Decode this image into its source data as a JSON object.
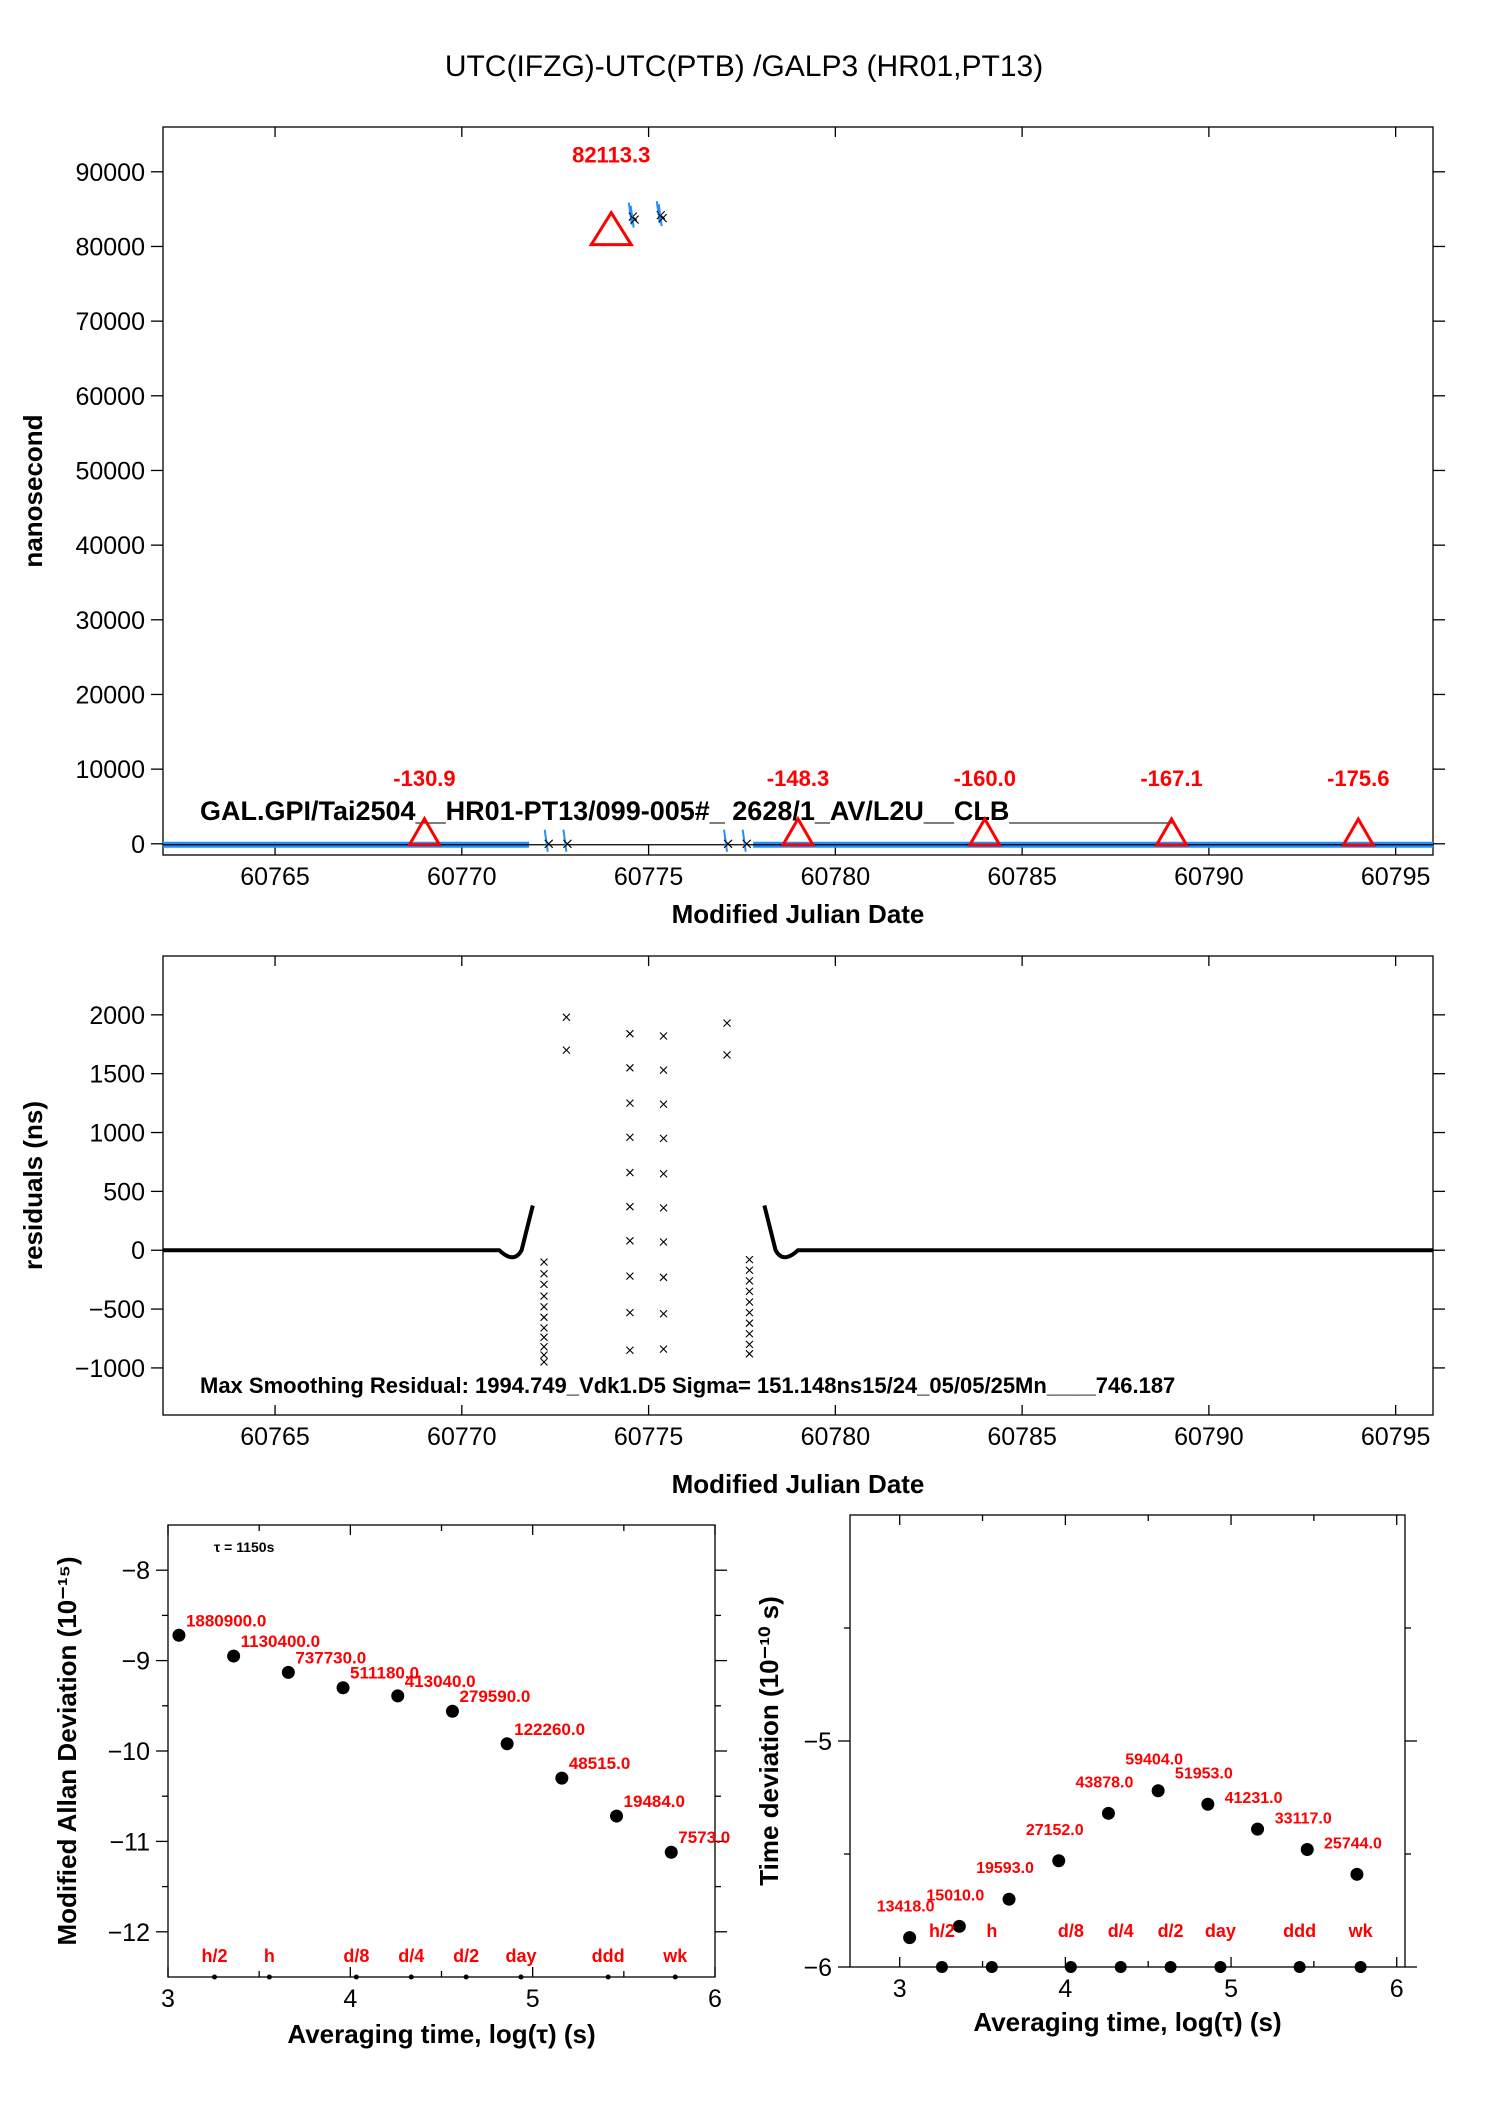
{
  "title": "UTC(IFZG)-UTC(PTB)  /GALP3  (HR01,PT13)",
  "chart_data": [
    {
      "id": "top",
      "type": "scatter",
      "xlabel": "Modified Julian Date",
      "ylabel": "nanosecond",
      "xlim": [
        60762,
        60796
      ],
      "ylim": [
        -1500,
        96000
      ],
      "xticks": [
        60765,
        60770,
        60775,
        60780,
        60785,
        60790,
        60795
      ],
      "yticks": [
        0,
        10000,
        20000,
        30000,
        40000,
        50000,
        60000,
        70000,
        80000,
        90000
      ],
      "caption": "GAL.GPI/Tai2504__HR01-PT13/099-005#_  2628/1_AV/L2U__CLB___________",
      "markers": [
        {
          "x": 60774.0,
          "y": 82113.3,
          "label": "82113.3",
          "big": true
        },
        {
          "x": 60769.0,
          "y": -130.9,
          "label": "-130.9"
        },
        {
          "x": 60779.0,
          "y": -148.3,
          "label": "-148.3"
        },
        {
          "x": 60784.0,
          "y": -160.0,
          "label": "-160.0"
        },
        {
          "x": 60789.0,
          "y": -167.1,
          "label": "-167.1"
        },
        {
          "x": 60794.0,
          "y": -175.6,
          "label": "-175.6"
        }
      ],
      "baseline": {
        "x": [
          60762,
          60796
        ],
        "y": -130
      },
      "outliers": [
        {
          "x": 60774.55,
          "y": 84000
        },
        {
          "x": 60774.6,
          "y": 83600
        },
        {
          "x": 60775.3,
          "y": 84200
        },
        {
          "x": 60775.35,
          "y": 83800
        },
        {
          "x": 60772.3,
          "y": 0
        },
        {
          "x": 60772.8,
          "y": 0
        },
        {
          "x": 60777.1,
          "y": 0
        },
        {
          "x": 60777.6,
          "y": 0
        }
      ],
      "colors": {
        "series": "#1e90ff",
        "marker": "#ff0000"
      }
    },
    {
      "id": "residuals",
      "type": "scatter",
      "xlabel": "Modified Julian Date",
      "ylabel": "residuals (ns)",
      "xlim": [
        60762,
        60796
      ],
      "ylim": [
        -1400,
        2500
      ],
      "xticks": [
        60765,
        60770,
        60775,
        60780,
        60785,
        60790,
        60795
      ],
      "yticks": [
        -1000,
        -500,
        0,
        500,
        1000,
        1500,
        2000
      ],
      "caption": "Max Smoothing Residual: 1994.749_Vdk1.D5  Sigma= 151.148ns15/24_05/05/25Mn____746.187",
      "scatter_columns": [
        {
          "x": 60772.2,
          "ys": [
            -950,
            -890,
            -820,
            -740,
            -660,
            -570,
            -480,
            -390,
            -290,
            -200,
            -100
          ]
        },
        {
          "x": 60772.8,
          "ys": [
            1980,
            1700
          ]
        },
        {
          "x": 60774.5,
          "ys": [
            1840,
            1550,
            1250,
            960,
            660,
            370,
            80,
            -220,
            -530,
            -850
          ]
        },
        {
          "x": 60775.4,
          "ys": [
            1820,
            1530,
            1240,
            950,
            650,
            360,
            70,
            -230,
            -540,
            -840
          ]
        },
        {
          "x": 60777.1,
          "ys": [
            1930,
            1660
          ]
        },
        {
          "x": 60777.7,
          "ys": [
            -880,
            -800,
            -710,
            -620,
            -530,
            -440,
            -350,
            -260,
            -170,
            -80
          ]
        }
      ]
    },
    {
      "id": "mdev",
      "type": "scatter",
      "xlabel": "Averaging time, log(τ) (s)",
      "ylabel": "Modified Allan Deviation (10⁻¹⁵)",
      "xlim": [
        3,
        6
      ],
      "ylim": [
        -12.5,
        -7.5
      ],
      "xticks": [
        3,
        4,
        5,
        6
      ],
      "yticks": [
        -12,
        -11,
        -10,
        -9,
        -8
      ],
      "note": "τ = 1150s",
      "x": [
        3.06,
        3.36,
        3.66,
        3.96,
        4.26,
        4.56,
        4.86,
        5.16,
        5.46,
        5.76
      ],
      "y": [
        -8.72,
        -8.95,
        -9.13,
        -9.3,
        -9.39,
        -9.56,
        -9.92,
        -10.3,
        -10.72,
        -11.12
      ],
      "point_labels": [
        "1880900.0",
        "1130400.0",
        "737730.0",
        "511180.0",
        "413040.0",
        "279590.0",
        "122260.0",
        "48515.0",
        "19484.0",
        "7573.0"
      ],
      "interval_labels": [
        "h/2",
        "h",
        "d/8",
        "d/4",
        "d/2",
        "day",
        "ddd",
        "wk"
      ],
      "interval_x": [
        3.255,
        3.556,
        4.033,
        4.334,
        4.635,
        4.936,
        5.414,
        5.782
      ]
    },
    {
      "id": "tdev",
      "type": "scatter",
      "xlabel": "Averaging time, log(τ) (s)",
      "ylabel": "Time deviation (10⁻¹⁰ s)",
      "xlim": [
        2.7,
        6.05
      ],
      "ylim": [
        -6.0,
        -4.0
      ],
      "xticks": [
        3,
        4,
        5,
        6
      ],
      "yticks": [
        -6,
        -5
      ],
      "x": [
        3.06,
        3.36,
        3.66,
        3.96,
        4.26,
        4.56,
        4.86,
        5.16,
        5.46,
        5.76
      ],
      "y": [
        -5.87,
        -5.82,
        -5.7,
        -5.53,
        -5.32,
        -5.22,
        -5.28,
        -5.39,
        -5.48,
        -5.59
      ],
      "point_labels": [
        "13418.0",
        "15010.0",
        "19593.0",
        "27152.0",
        "43878.0",
        "59404.0",
        "51953.0",
        "41231.0",
        "33117.0",
        "25744.0"
      ],
      "interval_labels": [
        "h/2",
        "h",
        "d/8",
        "d/4",
        "d/2",
        "day",
        "ddd",
        "wk"
      ],
      "interval_x": [
        3.255,
        3.556,
        4.033,
        4.334,
        4.635,
        4.936,
        5.414,
        5.782
      ]
    }
  ]
}
